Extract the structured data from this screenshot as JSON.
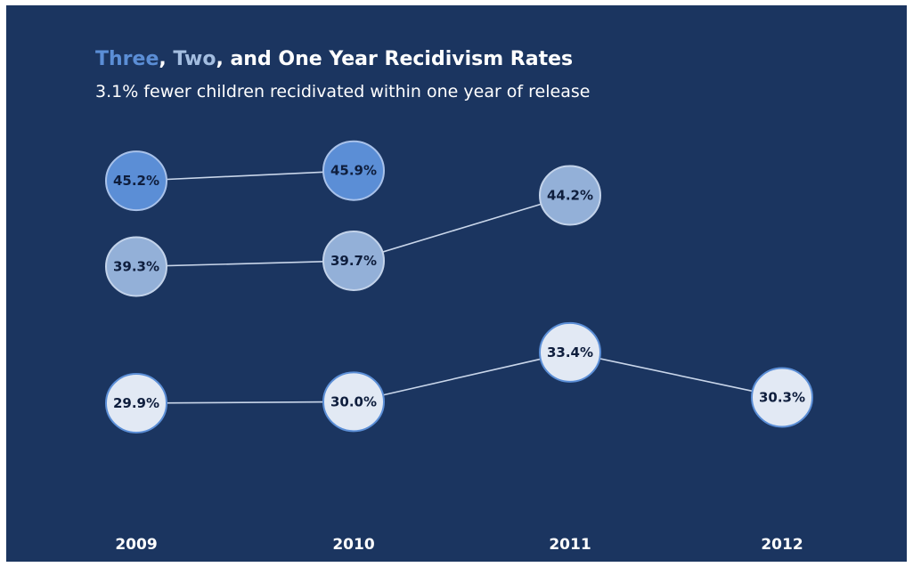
{
  "title": {
    "part1": "Three",
    "sep1": ", ",
    "part2": "Two",
    "part3": ", and One Year Recidivism Rates",
    "color1": "#5b8ed6",
    "color2": "#a3bde0",
    "color3": "#ffffff"
  },
  "subtitle": "3.1% fewer children recidivated within one year of release",
  "colors": {
    "background": "#1b3560",
    "line": "#c9d6ea"
  },
  "chart_data": {
    "type": "line",
    "title": "Three, Two, and One Year Recidivism Rates",
    "subtitle": "3.1% fewer children recidivated within one year of release",
    "categories": [
      "2009",
      "2010",
      "2011",
      "2012"
    ],
    "ylim": [
      25,
      50
    ],
    "grid": false,
    "series": [
      {
        "values": [
          45.2,
          45.9,
          null,
          null
        ],
        "labels": [
          "45.2%",
          "45.9%",
          "",
          ""
        ],
        "fill": "#5b8ed6",
        "stroke": "#a9c2ea"
      },
      {
        "values": [
          39.3,
          39.7,
          44.2,
          null
        ],
        "labels": [
          "39.3%",
          "39.7%",
          "44.2%",
          ""
        ],
        "fill": "#93b0d8",
        "stroke": "#c3d3ea"
      },
      {
        "values": [
          29.9,
          30.0,
          33.4,
          30.3
        ],
        "labels": [
          "29.9%",
          "30.0%",
          "33.4%",
          "30.3%"
        ],
        "fill": "#e2e9f4",
        "stroke": "#5b8ed6"
      }
    ]
  }
}
